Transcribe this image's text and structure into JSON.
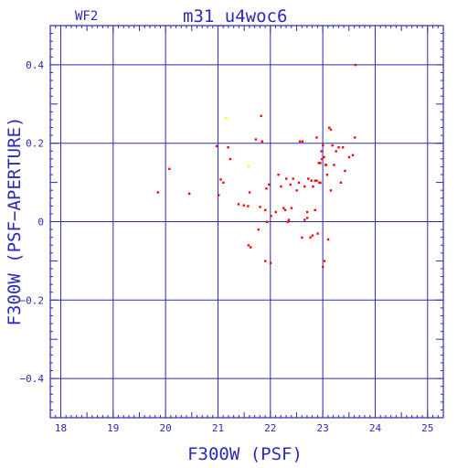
{
  "header": {
    "chip": "WF2",
    "title": "m31_u4woc6"
  },
  "chart_data": {
    "type": "scatter",
    "title": "m31_u4woc6",
    "xlabel": "F300W (PSF)",
    "ylabel": "F300W (PSF−APERTURE)",
    "xlim": [
      17.8,
      25.3
    ],
    "ylim": [
      -0.5,
      0.5
    ],
    "xticks": [
      18,
      19,
      20,
      21,
      22,
      23,
      24,
      25
    ],
    "yticks": [
      -0.4,
      -0.2,
      0,
      0.2,
      0.4
    ],
    "ytick_labels": [
      "−0.4",
      "−0.2",
      "0",
      "0.2",
      "0.4"
    ],
    "grid": true,
    "colors": {
      "axis": "#2a2ab4",
      "points": "#ff0000",
      "highlight": "#ffff00",
      "background": "#ffffff"
    },
    "series": [
      {
        "color": "#ff0000",
        "x": [
          23.62,
          19.85,
          20.07,
          20.45,
          21.01,
          21.05,
          21.1,
          21.19,
          21.23,
          20.97,
          21.39,
          21.49,
          21.57,
          21.6,
          21.62,
          21.77,
          21.8,
          21.84,
          21.82,
          21.9,
          21.93,
          21.97,
          22.01,
          22.1,
          22.15,
          22.2,
          22.25,
          22.28,
          22.3,
          22.33,
          22.38,
          22.43,
          22.5,
          22.54,
          22.56,
          22.61,
          22.65,
          22.7,
          22.72,
          22.78,
          22.81,
          22.85,
          22.88,
          22.92,
          22.95,
          22.97,
          23.0,
          23.02,
          23.05,
          23.08,
          23.12,
          23.15,
          23.18,
          23.21,
          23.25,
          23.3,
          23.34,
          23.38,
          23.42,
          23.5,
          23.57,
          23.61,
          23.0,
          23.03,
          23.1,
          22.9,
          22.76,
          22.7,
          22.65,
          22.8,
          22.6,
          22.95,
          23.06,
          22.88,
          22.98,
          21.9,
          21.93,
          22.0,
          21.58,
          21.72,
          22.35,
          22.4,
          22.93,
          23.15,
          22.85,
          21.92
        ],
        "y": [
          0.4,
          0.075,
          0.135,
          0.072,
          0.068,
          0.108,
          0.1,
          0.19,
          0.16,
          0.193,
          0.045,
          0.042,
          0.04,
          0.075,
          -0.065,
          -0.02,
          0.038,
          0.205,
          0.27,
          0.03,
          0.0,
          0.095,
          0.015,
          0.025,
          0.12,
          0.09,
          0.035,
          0.03,
          0.11,
          0.0,
          0.095,
          0.11,
          0.08,
          0.1,
          0.205,
          0.205,
          0.09,
          0.01,
          0.11,
          0.105,
          0.09,
          0.03,
          0.215,
          0.15,
          0.15,
          0.18,
          0.195,
          0.165,
          0.145,
          0.12,
          0.24,
          0.235,
          0.195,
          0.145,
          0.18,
          0.19,
          0.1,
          0.19,
          0.13,
          0.165,
          0.17,
          0.215,
          -0.115,
          -0.1,
          -0.045,
          -0.03,
          -0.04,
          0.025,
          0.005,
          -0.035,
          -0.04,
          0.1,
          0.145,
          0.105,
          0.16,
          -0.1,
          0.0,
          -0.105,
          -0.06,
          0.21,
          0.005,
          0.035,
          0.1,
          0.08,
          0.105,
          0.085
        ]
      },
      {
        "color": "#ffff00",
        "x": [
          21.15,
          21.58
        ],
        "y": [
          0.265,
          0.142
        ]
      }
    ]
  }
}
